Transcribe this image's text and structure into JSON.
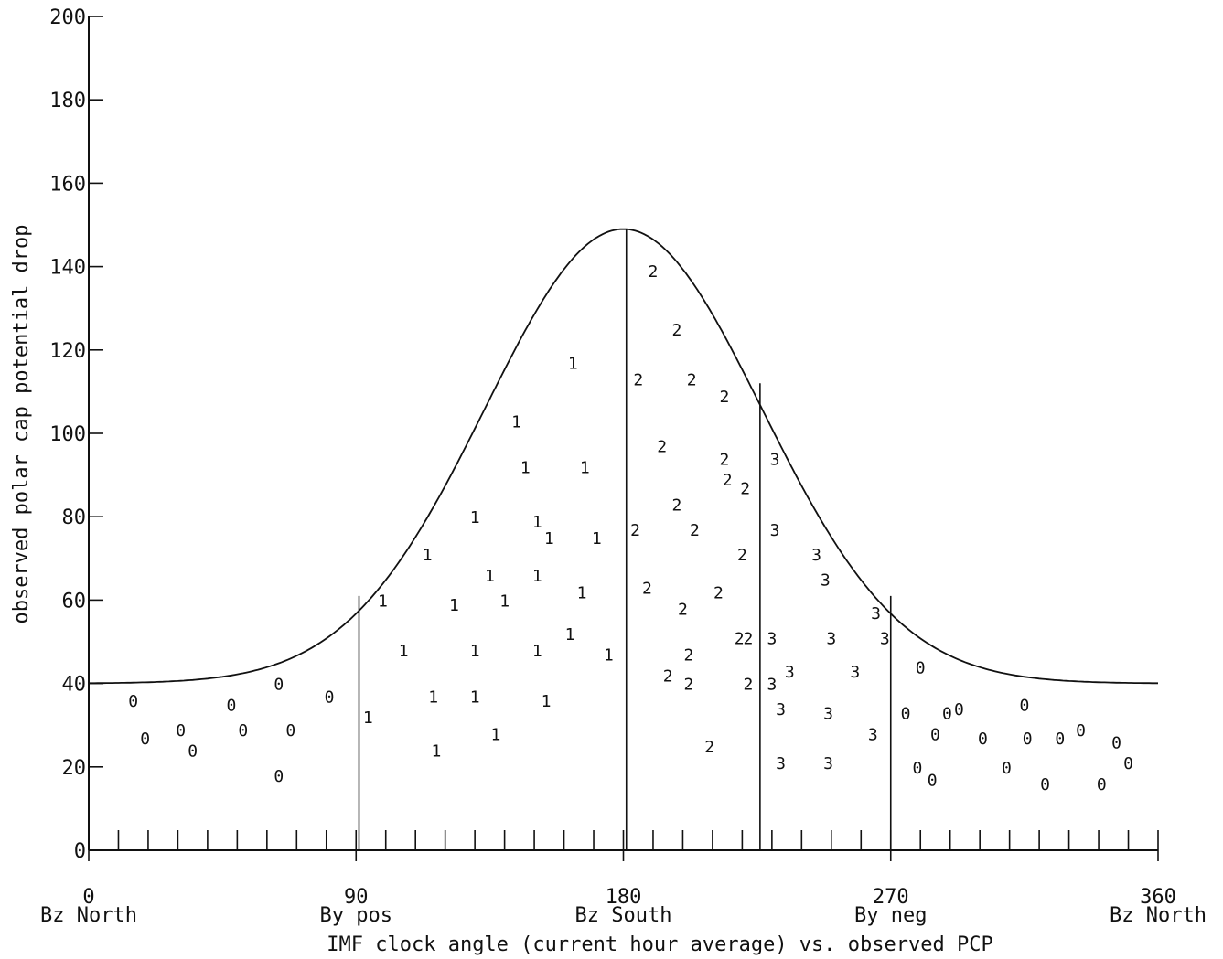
{
  "chart_data": {
    "type": "scatter",
    "title": "",
    "xlabel": "IMF clock angle (current hour average) vs. observed PCP",
    "ylabel": "observed polar cap potential drop",
    "xlim": [
      0,
      360
    ],
    "ylim": [
      0,
      200
    ],
    "y_ticks": [
      "0",
      "20",
      "40",
      "60",
      "80",
      "100",
      "120",
      "140",
      "160",
      "180",
      "200"
    ],
    "x_ticks": [
      {
        "value": 0,
        "label": "0",
        "sublabel": "Bz North"
      },
      {
        "value": 90,
        "label": "90",
        "sublabel": "By pos"
      },
      {
        "value": 180,
        "label": "180",
        "sublabel": "Bz South"
      },
      {
        "value": 270,
        "label": "270",
        "sublabel": "By neg"
      },
      {
        "value": 360,
        "label": "360",
        "sublabel": "Bz North"
      }
    ],
    "grid": false,
    "minor_tick_interval": 10,
    "curve": {
      "description_label": "",
      "baseline": 40,
      "peak": 149,
      "peak_x": 180
    },
    "boundary_lines": [
      {
        "x": 91,
        "top": 61
      },
      {
        "x": 181,
        "top": 149
      },
      {
        "x": 226,
        "top": 112
      },
      {
        "x": 270,
        "top": 61
      }
    ],
    "series": [
      {
        "marker": "0",
        "points": [
          [
            15,
            36
          ],
          [
            19,
            27
          ],
          [
            31,
            29
          ],
          [
            35,
            24
          ],
          [
            48,
            35
          ],
          [
            52,
            29
          ],
          [
            64,
            18
          ],
          [
            64,
            40
          ],
          [
            68,
            29
          ],
          [
            81,
            37
          ],
          [
            280,
            44
          ],
          [
            275,
            33
          ],
          [
            285,
            28
          ],
          [
            289,
            33
          ],
          [
            293,
            34
          ],
          [
            279,
            20
          ],
          [
            284,
            17
          ],
          [
            301,
            27
          ],
          [
            309,
            20
          ],
          [
            315,
            35
          ],
          [
            316,
            27
          ],
          [
            322,
            16
          ],
          [
            327,
            27
          ],
          [
            334,
            29
          ],
          [
            341,
            16
          ],
          [
            346,
            26
          ],
          [
            350,
            21
          ]
        ]
      },
      {
        "marker": "1",
        "points": [
          [
            94,
            32
          ],
          [
            99,
            60
          ],
          [
            106,
            48
          ],
          [
            114,
            71
          ],
          [
            116,
            37
          ],
          [
            117,
            24
          ],
          [
            123,
            59
          ],
          [
            130,
            80
          ],
          [
            130,
            48
          ],
          [
            130,
            37
          ],
          [
            135,
            66
          ],
          [
            137,
            28
          ],
          [
            140,
            60
          ],
          [
            144,
            103
          ],
          [
            147,
            92
          ],
          [
            151,
            79
          ],
          [
            151,
            66
          ],
          [
            151,
            48
          ],
          [
            155,
            75
          ],
          [
            154,
            36
          ],
          [
            162,
            52
          ],
          [
            163,
            117
          ],
          [
            166,
            62
          ],
          [
            167,
            92
          ],
          [
            171,
            75
          ],
          [
            175,
            47
          ]
        ]
      },
      {
        "marker": "2",
        "points": [
          [
            184,
            77
          ],
          [
            185,
            113
          ],
          [
            188,
            63
          ],
          [
            190,
            139
          ],
          [
            193,
            97
          ],
          [
            195,
            42
          ],
          [
            198,
            83
          ],
          [
            198,
            125
          ],
          [
            200,
            58
          ],
          [
            202,
            40
          ],
          [
            202,
            47
          ],
          [
            203,
            113
          ],
          [
            204,
            77
          ],
          [
            209,
            25
          ],
          [
            212,
            62
          ],
          [
            214,
            94
          ],
          [
            214,
            109
          ],
          [
            215,
            89
          ],
          [
            221,
            87
          ],
          [
            219,
            51
          ],
          [
            220,
            71
          ],
          [
            222,
            51
          ],
          [
            222,
            40
          ]
        ]
      },
      {
        "marker": "3",
        "points": [
          [
            230,
            51
          ],
          [
            230,
            40
          ],
          [
            231,
            94
          ],
          [
            231,
            77
          ],
          [
            233,
            34
          ],
          [
            233,
            21
          ],
          [
            236,
            43
          ],
          [
            245,
            71
          ],
          [
            248,
            65
          ],
          [
            249,
            33
          ],
          [
            249,
            21
          ],
          [
            250,
            51
          ],
          [
            258,
            43
          ],
          [
            264,
            28
          ],
          [
            265,
            57
          ],
          [
            268,
            51
          ]
        ]
      }
    ]
  }
}
